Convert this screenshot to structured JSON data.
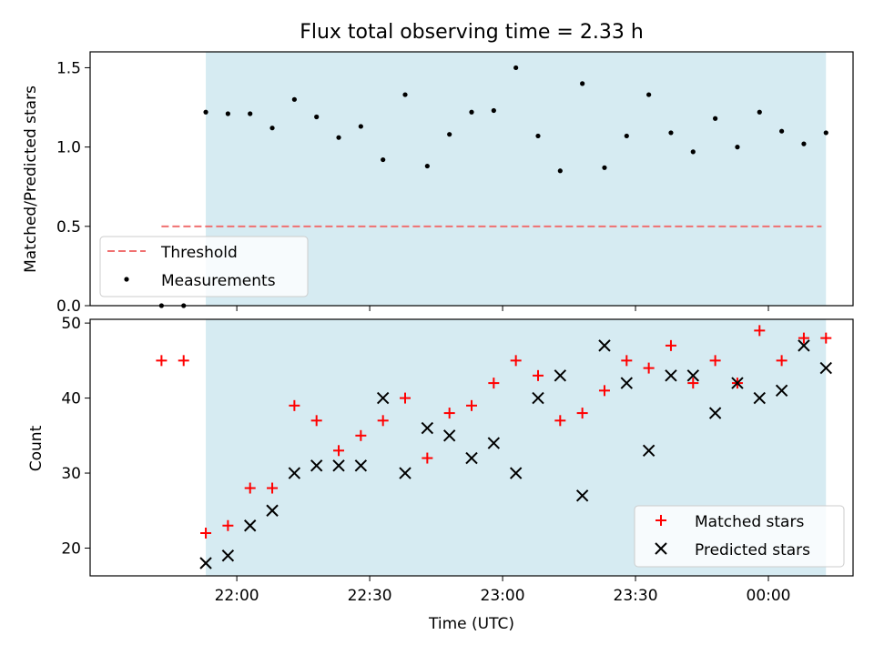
{
  "chart_data": [
    {
      "type": "scatter",
      "title": "Flux total observing time = 2.33 h",
      "ylabel": "Matched/Predicted stars",
      "xlabel": "",
      "ylim": [
        0,
        1.6
      ],
      "yticks": [
        0.0,
        0.5,
        1.0,
        1.5
      ],
      "ytick_labels": [
        "0.0",
        "0.5",
        "1.0",
        "1.5"
      ],
      "xlim": [
        "21:34",
        "00:12"
      ],
      "xticks": [
        "22:00",
        "22:30",
        "23:00",
        "23:30",
        "00:00"
      ],
      "shaded_region": {
        "start": "21:53",
        "end": "00:13",
        "color": "#add8e6"
      },
      "legend_position": "lower-left",
      "threshold": {
        "name": "Threshold",
        "value": 0.5,
        "start": "21:43",
        "end": "00:12",
        "color": "#f07070",
        "style": "dashed"
      },
      "series": [
        {
          "name": "Measurements",
          "marker": "dot",
          "color": "#000000",
          "x": [
            "21:43",
            "21:48",
            "21:53",
            "21:58",
            "22:03",
            "22:08",
            "22:13",
            "22:18",
            "22:23",
            "22:28",
            "22:33",
            "22:38",
            "22:43",
            "22:48",
            "22:53",
            "22:58",
            "23:03",
            "23:08",
            "23:13",
            "23:18",
            "23:23",
            "23:28",
            "23:33",
            "23:38",
            "23:43",
            "23:48",
            "23:53",
            "23:58",
            "00:03",
            "00:08",
            "00:13"
          ],
          "y": [
            0.0,
            0.0,
            1.22,
            1.21,
            1.21,
            1.12,
            1.3,
            1.19,
            1.06,
            1.13,
            0.92,
            1.33,
            0.88,
            1.08,
            1.22,
            1.23,
            1.5,
            1.07,
            0.85,
            1.4,
            0.87,
            1.07,
            1.33,
            1.09,
            0.97,
            1.18,
            1.0,
            1.22,
            1.1,
            1.02,
            1.09
          ]
        }
      ]
    },
    {
      "type": "scatter",
      "title": "",
      "ylabel": "Count",
      "xlabel": "Time (UTC)",
      "ylim": [
        16.3,
        50.5
      ],
      "yticks": [
        20,
        30,
        40,
        50
      ],
      "ytick_labels": [
        "20",
        "30",
        "40",
        "50"
      ],
      "xlim": [
        "21:34",
        "00:12"
      ],
      "xticks": [
        "22:00",
        "22:30",
        "23:00",
        "23:30",
        "00:00"
      ],
      "xtick_labels": [
        "22:00",
        "22:30",
        "23:00",
        "23:30",
        "00:00"
      ],
      "shaded_region": {
        "start": "21:53",
        "end": "00:13",
        "color": "#add8e6"
      },
      "legend_position": "lower-right",
      "series": [
        {
          "name": "Matched stars",
          "marker": "plus",
          "color": "#ff0000",
          "x": [
            "21:43",
            "21:48",
            "21:53",
            "21:58",
            "22:03",
            "22:08",
            "22:13",
            "22:18",
            "22:23",
            "22:28",
            "22:33",
            "22:38",
            "22:43",
            "22:48",
            "22:53",
            "22:58",
            "23:03",
            "23:08",
            "23:13",
            "23:18",
            "23:23",
            "23:28",
            "23:33",
            "23:38",
            "23:43",
            "23:48",
            "23:53",
            "23:58",
            "00:03",
            "00:08",
            "00:13"
          ],
          "y": [
            45,
            45,
            22,
            23,
            28,
            28,
            39,
            37,
            33,
            35,
            37,
            40,
            32,
            38,
            39,
            42,
            45,
            43,
            37,
            38,
            41,
            45,
            44,
            47,
            42,
            45,
            42,
            49,
            45,
            48,
            48
          ]
        },
        {
          "name": "Predicted stars",
          "marker": "x",
          "color": "#000000",
          "x": [
            "21:53",
            "21:58",
            "22:03",
            "22:08",
            "22:13",
            "22:18",
            "22:23",
            "22:28",
            "22:33",
            "22:38",
            "22:43",
            "22:48",
            "22:53",
            "22:58",
            "23:03",
            "23:08",
            "23:13",
            "23:18",
            "23:23",
            "23:28",
            "23:33",
            "23:38",
            "23:43",
            "23:48",
            "23:53",
            "23:58",
            "00:03",
            "00:08",
            "00:13"
          ],
          "y": [
            18,
            19,
            23,
            25,
            30,
            31,
            31,
            31,
            40,
            30,
            36,
            35,
            32,
            34,
            30,
            40,
            43,
            27,
            47,
            42,
            33,
            43,
            43,
            38,
            42,
            40,
            41,
            47,
            44
          ]
        }
      ]
    }
  ]
}
